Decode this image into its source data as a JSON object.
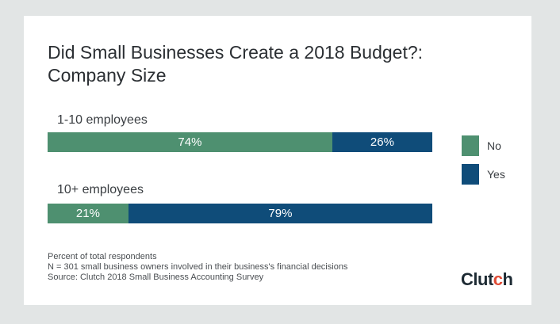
{
  "chart_data": {
    "type": "bar",
    "orientation": "horizontal",
    "stacked": true,
    "title": "Did Small Businesses Create a 2018 Budget?: Company Size",
    "categories": [
      "1-10 employees",
      "10+ employees"
    ],
    "series": [
      {
        "name": "No",
        "values": [
          74,
          21
        ],
        "labels": [
          "74%",
          "21%"
        ],
        "color": "#4e9070"
      },
      {
        "name": "Yes",
        "values": [
          26,
          79
        ],
        "labels": [
          "26%",
          "79%"
        ],
        "color": "#0f4c79"
      }
    ],
    "unit": "%",
    "xlim": [
      0,
      100
    ],
    "legend_position": "right"
  },
  "title_lines": [
    "Did Small Businesses Create a 2018 Budget?:",
    "Company Size"
  ],
  "footnotes": [
    "Percent of total respondents",
    "N = 301 small business owners involved in their business's financial decisions",
    "Source: Clutch 2018 Small Business Accounting Survey"
  ],
  "logo": {
    "text_before": "Clut",
    "accent_text": "c",
    "text_after": "h"
  }
}
